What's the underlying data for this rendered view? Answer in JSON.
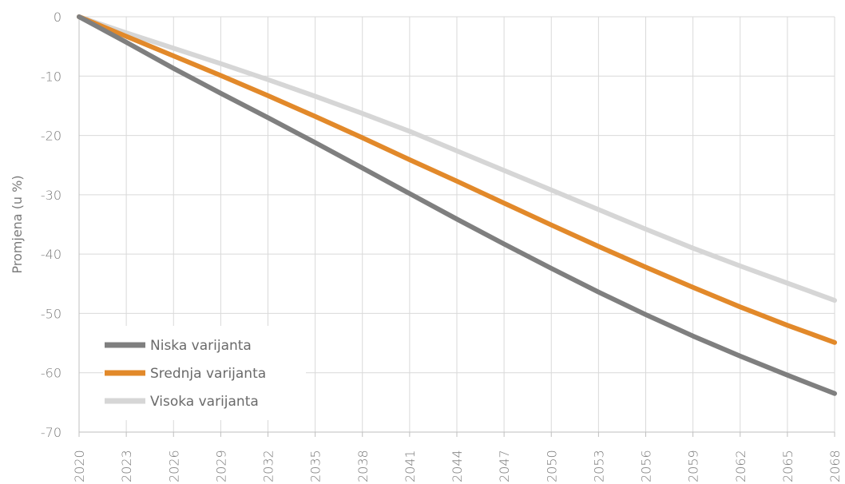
{
  "chart_data": {
    "type": "line",
    "title": "",
    "xlabel": "",
    "ylabel": "Promjena (u %)",
    "x": [
      2020,
      2023,
      2026,
      2029,
      2032,
      2035,
      2038,
      2041,
      2044,
      2047,
      2050,
      2053,
      2056,
      2059,
      2062,
      2065,
      2068
    ],
    "x_ticks": [
      "2020",
      "2023",
      "2026",
      "2029",
      "2032",
      "2035",
      "2038",
      "2041",
      "2044",
      "2047",
      "2050",
      "2053",
      "2056",
      "2059",
      "2062",
      "2065",
      "2068"
    ],
    "ylim": [
      -70,
      0
    ],
    "y_ticks": [
      "0",
      "-10",
      "-20",
      "-30",
      "-40",
      "-50",
      "-60",
      "-70"
    ],
    "grid": true,
    "legend_position": "bottom-left",
    "series": [
      {
        "name": "Niska varijanta",
        "color": "#7f7f7f",
        "values": [
          0,
          -4.3,
          -8.7,
          -12.9,
          -17.0,
          -21.2,
          -25.5,
          -29.8,
          -34.1,
          -38.3,
          -42.4,
          -46.4,
          -50.2,
          -53.8,
          -57.2,
          -60.4,
          -63.5
        ]
      },
      {
        "name": "Srednja varijanta",
        "color": "#e2892a",
        "values": [
          0,
          -3.3,
          -6.6,
          -9.9,
          -13.3,
          -16.8,
          -20.4,
          -24.1,
          -27.7,
          -31.4,
          -35.1,
          -38.7,
          -42.2,
          -45.6,
          -48.9,
          -52.0,
          -54.9
        ]
      },
      {
        "name": "Visoka varijanta",
        "color": "#d6d6d6",
        "values": [
          0,
          -2.7,
          -5.3,
          -7.9,
          -10.6,
          -13.4,
          -16.3,
          -19.3,
          -22.6,
          -25.9,
          -29.2,
          -32.5,
          -35.8,
          -39.0,
          -42.0,
          -44.9,
          -47.8
        ]
      }
    ]
  }
}
